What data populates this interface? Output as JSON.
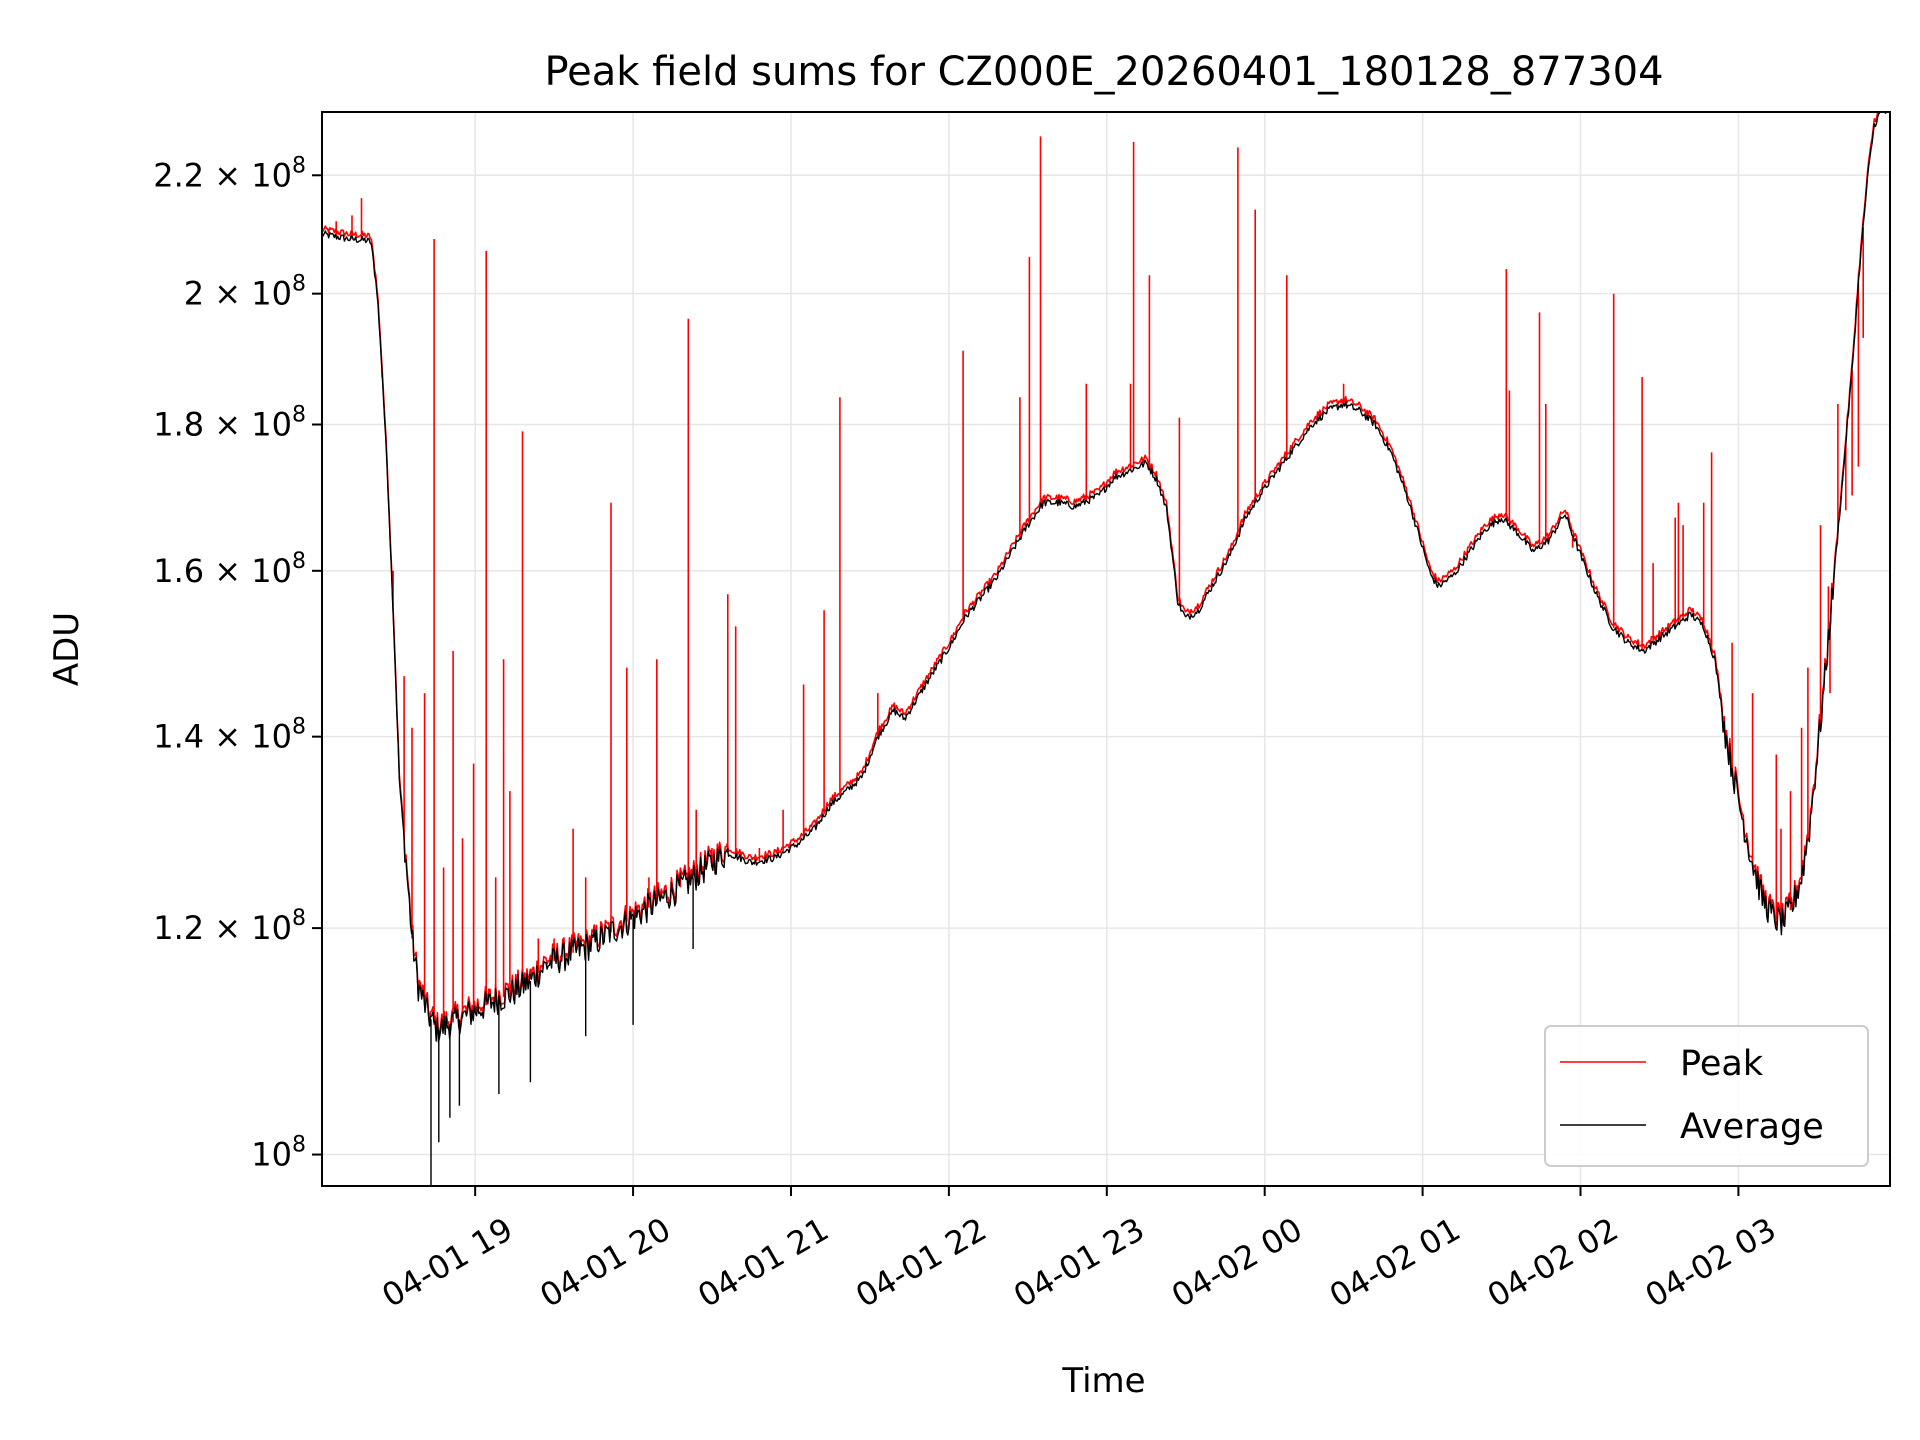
{
  "chart_data": {
    "type": "line",
    "title": "Peak field sums for CZ000E_20260401_180128_877304",
    "xlabel": "Time",
    "ylabel": "ADU",
    "yscale": "log",
    "grid": true,
    "legend_position": "lower-right",
    "xlim_hours": [
      18.03,
      27.96
    ],
    "ylim": [
      97500000,
      231500000
    ],
    "x_ticks": [
      {
        "hours": 19,
        "label": "04-01 19"
      },
      {
        "hours": 20,
        "label": "04-01 20"
      },
      {
        "hours": 21,
        "label": "04-01 21"
      },
      {
        "hours": 22,
        "label": "04-01 22"
      },
      {
        "hours": 23,
        "label": "04-01 23"
      },
      {
        "hours": 24,
        "label": "04-02 00"
      },
      {
        "hours": 25,
        "label": "04-02 01"
      },
      {
        "hours": 26,
        "label": "04-02 02"
      },
      {
        "hours": 27,
        "label": "04-02 03"
      }
    ],
    "y_ticks": [
      {
        "value": 100000000,
        "base": "10",
        "exp": "8"
      },
      {
        "value": 120000000,
        "base": "1.2 × 10",
        "exp": "8"
      },
      {
        "value": 140000000,
        "base": "1.4 × 10",
        "exp": "8"
      },
      {
        "value": 160000000,
        "base": "1.6 × 10",
        "exp": "8"
      },
      {
        "value": 180000000,
        "base": "1.8 × 10",
        "exp": "8"
      },
      {
        "value": 200000000,
        "base": "2 × 10",
        "exp": "8"
      },
      {
        "value": 220000000,
        "base": "2.2 × 10",
        "exp": "8"
      }
    ],
    "series": [
      {
        "name": "Peak",
        "color": "#ff0000",
        "spikes": [
          [
            18.12,
            212000000.0
          ],
          [
            18.22,
            213000000.0
          ],
          [
            18.28,
            216000000.0
          ],
          [
            18.41,
            187000000.0
          ],
          [
            18.48,
            160000000.0
          ],
          [
            18.55,
            147000000.0
          ],
          [
            18.6,
            141000000.0
          ],
          [
            18.68,
            145000000.0
          ],
          [
            18.74,
            209000000.0
          ],
          [
            18.8,
            126000000.0
          ],
          [
            18.86,
            150000000.0
          ],
          [
            18.92,
            129000000.0
          ],
          [
            18.99,
            137000000.0
          ],
          [
            19.07,
            207000000.0
          ],
          [
            19.13,
            125000000.0
          ],
          [
            19.18,
            149000000.0
          ],
          [
            19.22,
            134000000.0
          ],
          [
            19.3,
            179000000.0
          ],
          [
            19.4,
            119000000.0
          ],
          [
            19.5,
            119000000.0
          ],
          [
            19.62,
            130000000.0
          ],
          [
            19.7,
            125000000.0
          ],
          [
            19.86,
            169000000.0
          ],
          [
            19.96,
            148000000.0
          ],
          [
            20.1,
            125000000.0
          ],
          [
            20.15,
            149000000.0
          ],
          [
            20.3,
            126000000.0
          ],
          [
            20.4,
            132000000.0
          ],
          [
            20.35,
            196000000.0
          ],
          [
            20.5,
            128000000.0
          ],
          [
            20.6,
            157000000.0
          ],
          [
            20.65,
            153000000.0
          ],
          [
            20.8,
            128000000.0
          ],
          [
            20.95,
            132000000.0
          ],
          [
            21.08,
            146000000.0
          ],
          [
            21.21,
            155000000.0
          ],
          [
            21.31,
            184000000.0
          ],
          [
            21.55,
            145000000.0
          ],
          [
            22.09,
            191000000.0
          ],
          [
            22.45,
            184000000.0
          ],
          [
            22.51,
            206000000.0
          ],
          [
            22.58,
            227000000.0
          ],
          [
            22.87,
            186000000.0
          ],
          [
            23.15,
            186000000.0
          ],
          [
            23.17,
            226000000.0
          ],
          [
            23.27,
            203000000.0
          ],
          [
            23.46,
            181000000.0
          ],
          [
            23.83,
            225000000.0
          ],
          [
            23.94,
            214000000.0
          ],
          [
            24.14,
            203000000.0
          ],
          [
            24.5,
            186000000.0
          ],
          [
            25.53,
            204000000.0
          ],
          [
            25.55,
            185000000.0
          ],
          [
            25.74,
            197000000.0
          ],
          [
            25.78,
            183000000.0
          ],
          [
            25.95,
            163000000.0
          ],
          [
            26.21,
            200000000.0
          ],
          [
            26.39,
            187000000.0
          ],
          [
            26.46,
            161000000.0
          ],
          [
            26.6,
            167000000.0
          ],
          [
            26.62,
            169000000.0
          ],
          [
            26.65,
            166000000.0
          ],
          [
            26.78,
            169000000.0
          ],
          [
            26.83,
            176000000.0
          ],
          [
            26.96,
            151000000.0
          ],
          [
            27.09,
            145000000.0
          ],
          [
            27.24,
            138000000.0
          ],
          [
            27.27,
            130000000.0
          ],
          [
            27.33,
            134000000.0
          ],
          [
            27.4,
            141000000.0
          ],
          [
            27.44,
            148000000.0
          ],
          [
            27.52,
            166000000.0
          ],
          [
            27.57,
            158000000.0
          ],
          [
            27.58,
            145000000.0
          ],
          [
            27.63,
            183000000.0
          ],
          [
            27.66,
            173000000.0
          ],
          [
            27.68,
            168000000.0
          ],
          [
            27.72,
            170000000.0
          ],
          [
            27.76,
            174000000.0
          ],
          [
            27.79,
            193000000.0
          ]
        ]
      },
      {
        "name": "Average",
        "color": "#000000",
        "points": [
          [
            18.03,
            209800000.0
          ],
          [
            18.1,
            209500000.0
          ],
          [
            18.2,
            209000000.0
          ],
          [
            18.3,
            208800000.0
          ],
          [
            18.34,
            208500000.0
          ],
          [
            18.38,
            200000000.0
          ],
          [
            18.41,
            188000000.0
          ],
          [
            18.44,
            175000000.0
          ],
          [
            18.48,
            155000000.0
          ],
          [
            18.52,
            135000000.0
          ],
          [
            18.56,
            127000000.0
          ],
          [
            18.6,
            119000000.0
          ],
          [
            18.64,
            114500000.0
          ],
          [
            18.7,
            112000000.0
          ],
          [
            18.76,
            110500000.0
          ],
          [
            18.9,
            111500000.0
          ],
          [
            19.1,
            113000000.0
          ],
          [
            19.25,
            114000000.0
          ],
          [
            19.35,
            115000000.0
          ],
          [
            19.45,
            116500000.0
          ],
          [
            19.6,
            117500000.0
          ],
          [
            19.75,
            118500000.0
          ],
          [
            19.9,
            120000000.0
          ],
          [
            20.05,
            121500000.0
          ],
          [
            20.2,
            123000000.0
          ],
          [
            20.35,
            124500000.0
          ],
          [
            20.5,
            126500000.0
          ],
          [
            20.6,
            127500000.0
          ],
          [
            20.75,
            126500000.0
          ],
          [
            20.9,
            127000000.0
          ],
          [
            21.05,
            128500000.0
          ],
          [
            21.15,
            130000000.0
          ],
          [
            21.25,
            132500000.0
          ],
          [
            21.35,
            134000000.0
          ],
          [
            21.45,
            135500000.0
          ],
          [
            21.55,
            140000000.0
          ],
          [
            21.65,
            143000000.0
          ],
          [
            21.72,
            142000000.0
          ],
          [
            21.82,
            145000000.0
          ],
          [
            21.92,
            148000000.0
          ],
          [
            22.02,
            151000000.0
          ],
          [
            22.1,
            154000000.0
          ],
          [
            22.2,
            156500000.0
          ],
          [
            22.3,
            159000000.0
          ],
          [
            22.4,
            162500000.0
          ],
          [
            22.5,
            166000000.0
          ],
          [
            22.6,
            169000000.0
          ],
          [
            22.7,
            169000000.0
          ],
          [
            22.8,
            168500000.0
          ],
          [
            22.95,
            170000000.0
          ],
          [
            23.05,
            172500000.0
          ],
          [
            23.15,
            173500000.0
          ],
          [
            23.25,
            174500000.0
          ],
          [
            23.32,
            172000000.0
          ],
          [
            23.38,
            168000000.0
          ],
          [
            23.45,
            156000000.0
          ],
          [
            23.5,
            154000000.0
          ],
          [
            23.58,
            155000000.0
          ],
          [
            23.68,
            158500000.0
          ],
          [
            23.78,
            162000000.0
          ],
          [
            23.88,
            167000000.0
          ],
          [
            24.0,
            171000000.0
          ],
          [
            24.1,
            174000000.0
          ],
          [
            24.2,
            177000000.0
          ],
          [
            24.3,
            180000000.0
          ],
          [
            24.4,
            182000000.0
          ],
          [
            24.5,
            183000000.0
          ],
          [
            24.6,
            182000000.0
          ],
          [
            24.7,
            180000000.0
          ],
          [
            24.8,
            176000000.0
          ],
          [
            24.9,
            170000000.0
          ],
          [
            25.0,
            163000000.0
          ],
          [
            25.05,
            159500000.0
          ],
          [
            25.1,
            158000000.0
          ],
          [
            25.2,
            159500000.0
          ],
          [
            25.3,
            162500000.0
          ],
          [
            25.4,
            165500000.0
          ],
          [
            25.5,
            167000000.0
          ],
          [
            25.6,
            165000000.0
          ],
          [
            25.7,
            162500000.0
          ],
          [
            25.8,
            164000000.0
          ],
          [
            25.9,
            167500000.0
          ],
          [
            26.0,
            162000000.0
          ],
          [
            26.1,
            157000000.0
          ],
          [
            26.2,
            153000000.0
          ],
          [
            26.3,
            151000000.0
          ],
          [
            26.4,
            150000000.0
          ],
          [
            26.5,
            151500000.0
          ],
          [
            26.6,
            153000000.0
          ],
          [
            26.7,
            154500000.0
          ],
          [
            26.78,
            153000000.0
          ],
          [
            26.85,
            149000000.0
          ],
          [
            26.92,
            140000000.0
          ],
          [
            27.0,
            133000000.0
          ],
          [
            27.08,
            127000000.0
          ],
          [
            27.15,
            123000000.0
          ],
          [
            27.22,
            121000000.0
          ],
          [
            27.28,
            120500000.0
          ],
          [
            27.34,
            122000000.0
          ],
          [
            27.4,
            125000000.0
          ],
          [
            27.45,
            130000000.0
          ],
          [
            27.5,
            138000000.0
          ],
          [
            27.55,
            147000000.0
          ],
          [
            27.6,
            158000000.0
          ],
          [
            27.66,
            172000000.0
          ],
          [
            27.72,
            188000000.0
          ],
          [
            27.77,
            205000000.0
          ],
          [
            27.82,
            220000000.0
          ],
          [
            27.86,
            229000000.0
          ],
          [
            27.9,
            231500000.0
          ],
          [
            27.96,
            231500000.0
          ]
        ]
      }
    ]
  }
}
